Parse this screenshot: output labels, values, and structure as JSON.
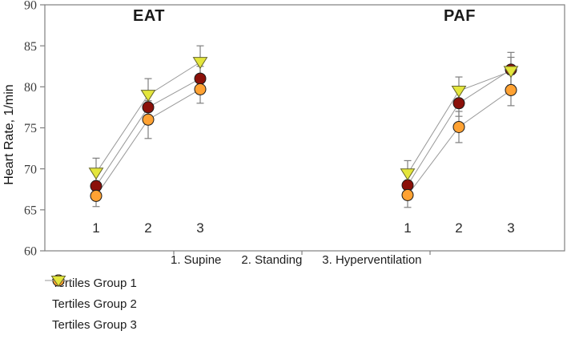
{
  "chart_data": {
    "type": "line",
    "ylabel": "Heart Rate, 1/min",
    "ylim": [
      60,
      90
    ],
    "yticks": [
      60,
      65,
      70,
      75,
      80,
      85,
      90
    ],
    "grid": false,
    "legend_position": "bottom-left",
    "x_note": "1. Supine      2. Standing      3. Hyperventilation",
    "categories": [
      "1",
      "2",
      "3"
    ],
    "category_meanings": [
      "Supine",
      "Standing",
      "Hyperventilation"
    ],
    "colors": {
      "line": "#999999",
      "error_bar": "#7f7f7f",
      "axis": "#808080"
    },
    "panels": [
      {
        "label": "EAT",
        "series": [
          {
            "name": "Tertiles Group 1",
            "marker": "circle",
            "color": "#8B1009",
            "values": [
              67.9,
              77.5,
              81.0
            ],
            "err": [
              1.5,
              1.8,
              1.5
            ]
          },
          {
            "name": "Tertiles Group 2",
            "marker": "circle",
            "color": "#FFA233",
            "values": [
              66.7,
              76.0,
              79.7
            ],
            "err": [
              1.3,
              2.3,
              1.7
            ]
          },
          {
            "name": "Tertiles Group 3",
            "marker": "triangle-down",
            "color": "#E4E63C",
            "values": [
              69.5,
              79.0,
              83.0
            ],
            "err": [
              1.8,
              2.0,
              2.0
            ]
          }
        ]
      },
      {
        "label": "PAF",
        "series": [
          {
            "name": "Tertiles Group 1",
            "marker": "circle",
            "color": "#8B1009",
            "values": [
              68.0,
              78.0,
              82.1
            ],
            "err": [
              1.5,
              1.6,
              2.1
            ]
          },
          {
            "name": "Tertiles Group 2",
            "marker": "circle",
            "color": "#FFA233",
            "values": [
              66.8,
              75.1,
              79.6
            ],
            "err": [
              1.5,
              1.9,
              1.9
            ]
          },
          {
            "name": "Tertiles Group 3",
            "marker": "triangle-down",
            "color": "#E4E63C",
            "values": [
              69.4,
              79.5,
              81.9
            ],
            "err": [
              1.6,
              1.7,
              1.7
            ]
          }
        ]
      }
    ]
  }
}
